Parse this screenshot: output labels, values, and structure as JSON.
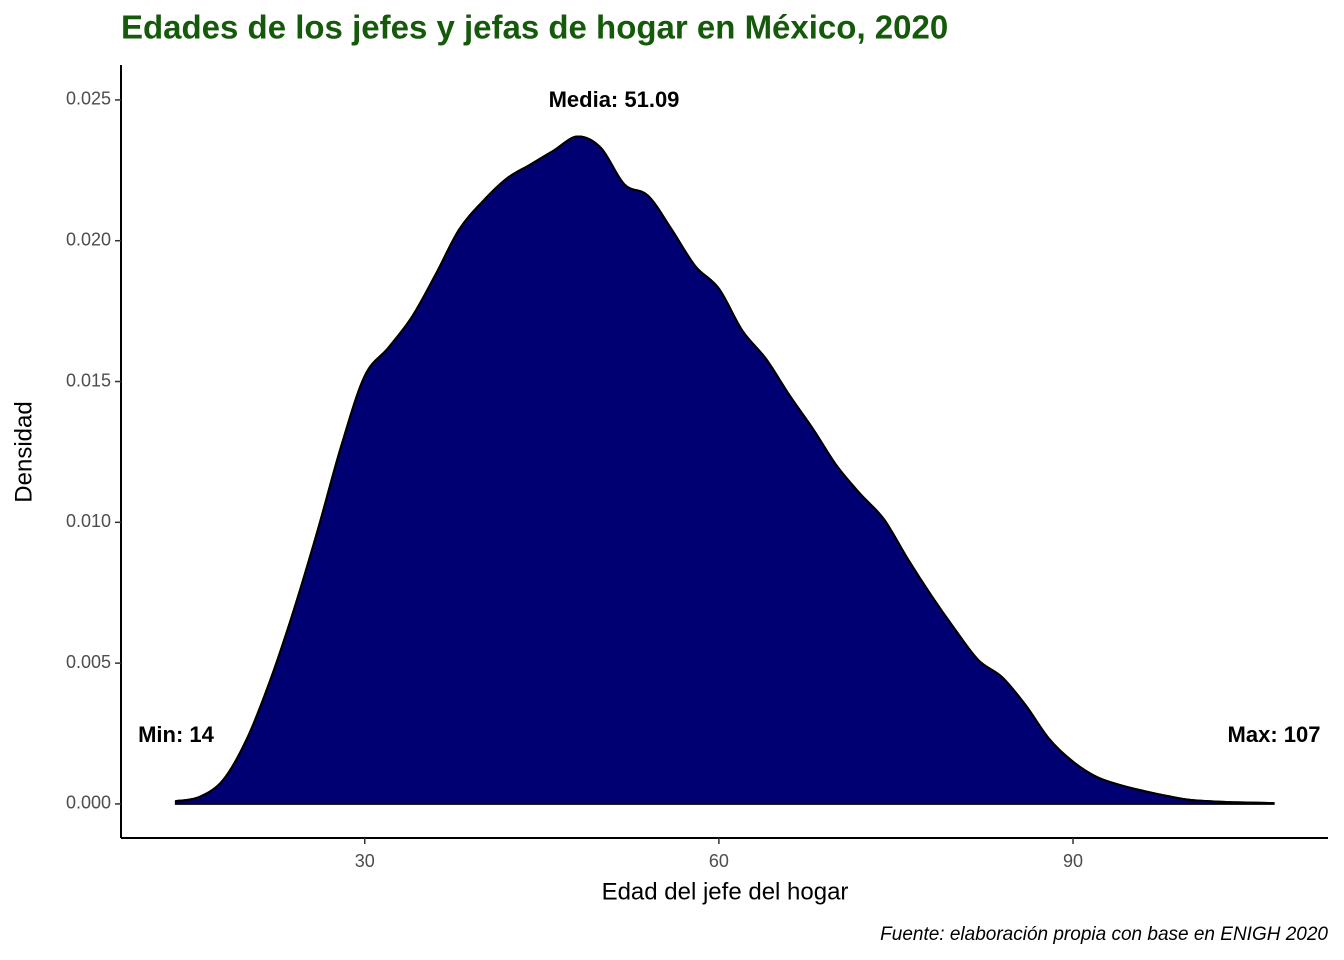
{
  "chart_data": {
    "type": "density",
    "title": "Edades de los jefes y jefas de hogar en México, 2020",
    "x_label": "Edad del jefe del hogar",
    "y_label": "Densidad",
    "caption": "Fuente: elaboración propia con base en ENIGH 2020",
    "annotations": [
      "Media: 51.09",
      "Min: 14",
      "Max: 107"
    ],
    "color": "#000073",
    "x": [
      14,
      16,
      18,
      20,
      22,
      24,
      26,
      28,
      30,
      32,
      34,
      36,
      38,
      40,
      42,
      44,
      46,
      48,
      50,
      52,
      54,
      56,
      58,
      60,
      62,
      64,
      66,
      68,
      70,
      72,
      74,
      76,
      78,
      80,
      82,
      84,
      86,
      88,
      90,
      92,
      94,
      96,
      98,
      100,
      103,
      107
    ],
    "values": [
      0.0001,
      0.00025,
      0.00085,
      0.0023,
      0.0044,
      0.0069,
      0.0097,
      0.0127,
      0.0152,
      0.0162,
      0.0173,
      0.0188,
      0.0204,
      0.0214,
      0.0222,
      0.0227,
      0.0232,
      0.0237,
      0.0233,
      0.022,
      0.0216,
      0.0204,
      0.0191,
      0.0183,
      0.0168,
      0.0158,
      0.0145,
      0.0133,
      0.012,
      0.011,
      0.0101,
      0.0087,
      0.0074,
      0.0062,
      0.0051,
      0.0045,
      0.0035,
      0.0023,
      0.0015,
      0.00096,
      0.00067,
      0.00046,
      0.00028,
      0.00014,
      7e-05,
      3e-05
    ],
    "xlim": [
      9.35,
      111.6
    ],
    "ylim": [
      -0.00121,
      0.02624
    ],
    "xticks": [
      30,
      60,
      90
    ],
    "yticks": [
      {
        "value": 0,
        "label": "0.000"
      },
      0.005,
      {
        "value": 0.01,
        "label": "0.010"
      },
      0.015,
      {
        "value": 0.02,
        "label": "0.020"
      },
      0.025
    ]
  }
}
